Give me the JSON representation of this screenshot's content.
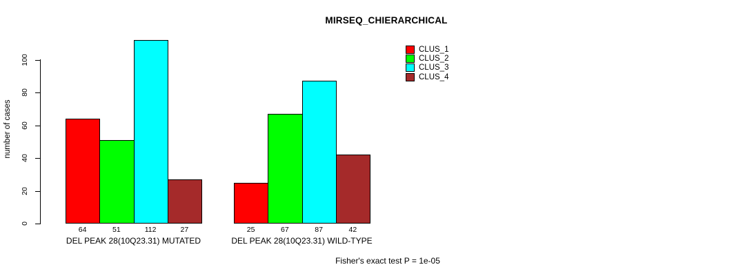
{
  "page": {
    "background_color": "#FFFFFF",
    "text_color": "#000000"
  },
  "chart_data": {
    "type": "bar",
    "title": "MIRSEQ_CHIERARCHICAL",
    "ylabel": "number of cases",
    "xlabel": "",
    "ylim": [
      0,
      100
    ],
    "yticks": [
      0,
      20,
      40,
      60,
      80,
      100
    ],
    "grid": false,
    "legend_position": "top-right",
    "categories": [
      "DEL PEAK 28(10Q23.31) MUTATED",
      "DEL PEAK 28(10Q23.31) WILD-TYPE"
    ],
    "series": [
      {
        "name": "CLUS_1",
        "color": "#FF0000",
        "values": [
          64,
          25
        ]
      },
      {
        "name": "CLUS_2",
        "color": "#00FF00",
        "values": [
          51,
          67
        ]
      },
      {
        "name": "CLUS_3",
        "color": "#00FFFF",
        "values": [
          112,
          87
        ]
      },
      {
        "name": "CLUS_4",
        "color": "#A52A2A",
        "values": [
          27,
          42
        ]
      }
    ],
    "bar_value_labels_shown": true,
    "bar_border_color": "#000000",
    "axis_color": "#000000",
    "annotation": "Fisher's exact test P = 1e-05"
  }
}
